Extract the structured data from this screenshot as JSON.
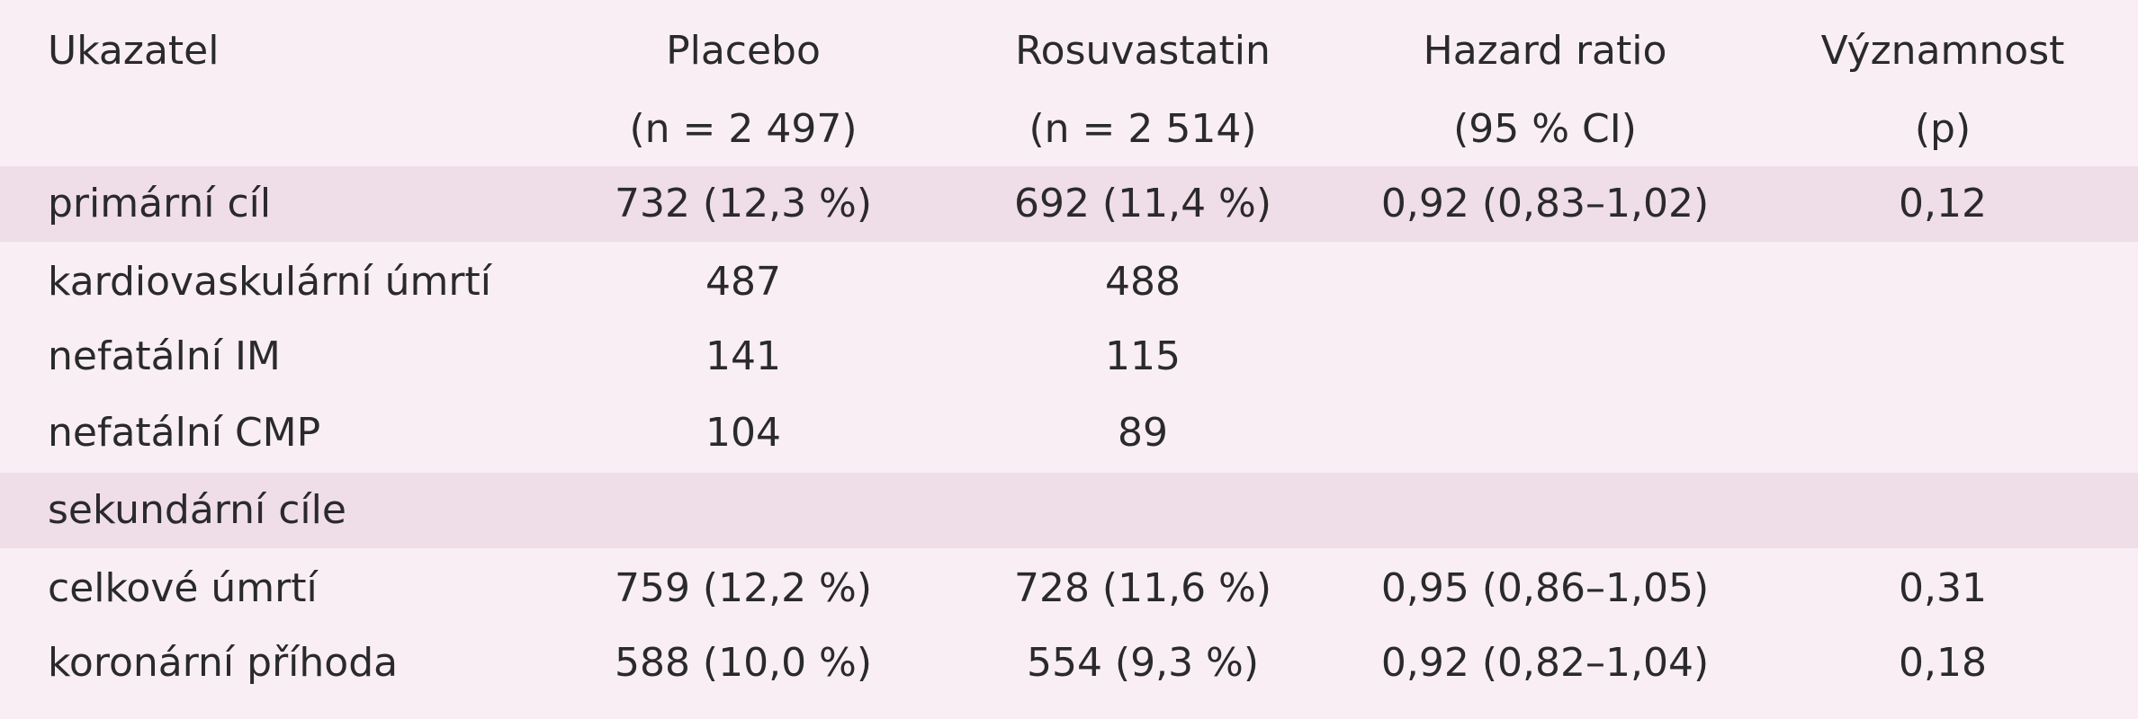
{
  "table": {
    "header": [
      [
        "Ukazatel"
      ],
      [
        "Placebo",
        "(n = 2 497)"
      ],
      [
        "Rosuvastatin",
        "(n = 2 514)"
      ],
      [
        "Hazard ratio",
        "(95 % CI)"
      ],
      [
        "Významnost",
        "(p)"
      ]
    ],
    "rows": [
      [
        "primární cíl",
        "732 (12,3 %)",
        "692 (11,4 %)",
        "0,92 (0,83–1,02)",
        "0,12"
      ],
      [
        "kardiovaskulární úmrtí",
        "487",
        "488"
      ],
      [
        "nefatální IM",
        "141",
        "115"
      ],
      [
        "nefatální CMP",
        "104",
        "89"
      ],
      [
        "sekundární cíle"
      ],
      [
        "celkové úmrtí",
        "759 (12,2 %)",
        "728 (11,6 %)",
        "0,95 (0,86–1,05)",
        "0,31"
      ],
      [
        "koronární příhoda",
        "588 (10,0 %)",
        "554 (9,3 %)",
        "0,92 (0,82–1,04)",
        "0,18"
      ]
    ]
  }
}
